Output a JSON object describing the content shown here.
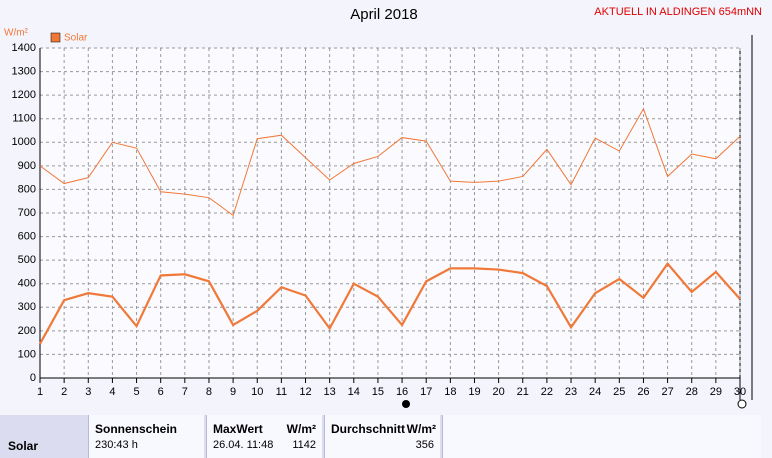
{
  "chart_data": {
    "type": "line",
    "title": "April 2018",
    "station": "AKTUELL IN ALDINGEN 654mNN",
    "y_label": "W/m²",
    "x": [
      1,
      2,
      3,
      4,
      5,
      6,
      7,
      8,
      9,
      10,
      11,
      12,
      13,
      14,
      15,
      16,
      17,
      18,
      19,
      20,
      21,
      22,
      23,
      24,
      25,
      26,
      27,
      28,
      29,
      30
    ],
    "xlim": [
      1,
      30
    ],
    "xticks": [
      1,
      2,
      3,
      4,
      5,
      6,
      7,
      8,
      9,
      10,
      11,
      12,
      13,
      14,
      15,
      16,
      17,
      18,
      19,
      20,
      21,
      22,
      23,
      24,
      25,
      26,
      27,
      28,
      29,
      30
    ],
    "ylim": [
      0,
      1400
    ],
    "yticks": [
      0,
      100,
      200,
      300,
      400,
      500,
      600,
      700,
      800,
      900,
      1000,
      1100,
      1200,
      1300,
      1400
    ],
    "grid": true,
    "series": [
      {
        "name": "Solar",
        "color": "#f07838",
        "values": [
          145,
          330,
          360,
          345,
          220,
          435,
          440,
          410,
          225,
          285,
          385,
          350,
          210,
          400,
          345,
          225,
          410,
          465,
          465,
          460,
          445,
          390,
          215,
          360,
          420,
          340,
          485,
          365,
          450,
          335
        ]
      },
      {
        "color": "#f07838",
        "values": [
          900,
          825,
          850,
          1000,
          975,
          790,
          780,
          765,
          690,
          1015,
          1030,
          935,
          840,
          910,
          940,
          1020,
          1005,
          835,
          830,
          835,
          855,
          970,
          820,
          1018,
          963,
          1142,
          855,
          950,
          930,
          1025
        ]
      }
    ]
  },
  "table": {
    "row_label": "Solar",
    "sunshine_title": "Sonnenschein",
    "sunshine": "230:43 h",
    "max_title": "MaxWert",
    "max_unit": "W/m²",
    "max_time": "26.04. 11:48",
    "max_value": "1142",
    "avg_title": "Durchschnitt",
    "avg_unit": "W/m²",
    "avg_value": "356"
  }
}
